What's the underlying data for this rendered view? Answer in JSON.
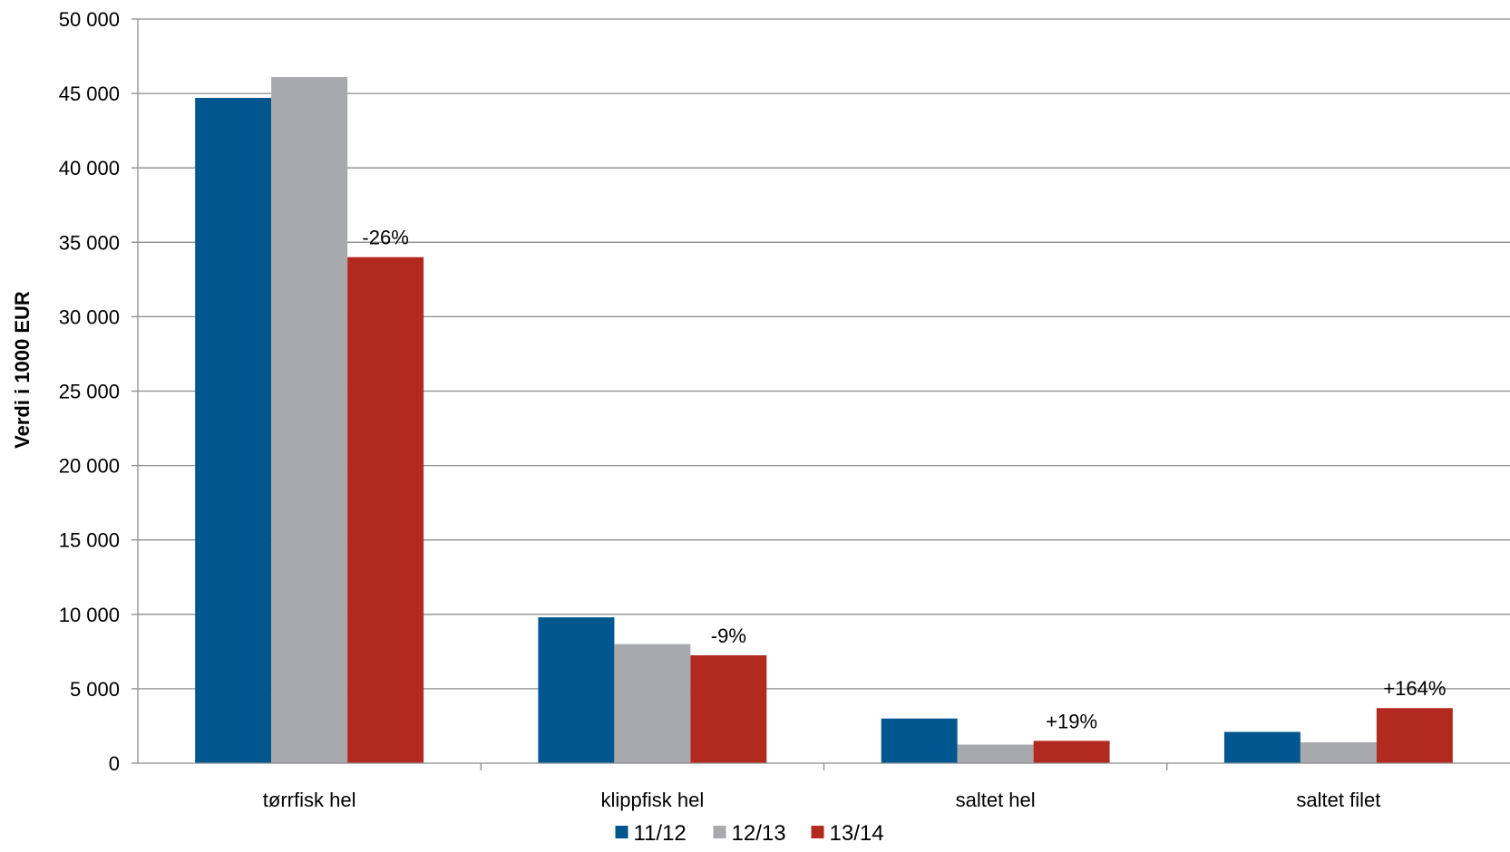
{
  "chart_data": {
    "type": "bar",
    "ylabel": "Verdi i 1000 EUR",
    "xlabel": "",
    "title": "",
    "ylim": [
      0,
      50000
    ],
    "yticks": [
      0,
      5000,
      10000,
      15000,
      20000,
      25000,
      30000,
      35000,
      40000,
      45000,
      50000
    ],
    "ytick_labels": [
      "0",
      "5 000",
      "10 000",
      "15 000",
      "20 000",
      "25 000",
      "30 000",
      "35 000",
      "40 000",
      "45 000",
      "50 000"
    ],
    "categories": [
      "tørrfisk hel",
      "klippfisk hel",
      "saltet hel",
      "saltet filet"
    ],
    "series": [
      {
        "name": "11/12",
        "color": "#00568F",
        "values": [
          44700,
          9800,
          3000,
          2100
        ]
      },
      {
        "name": "12/13",
        "color": "#A7A9AC",
        "values": [
          46100,
          8000,
          1250,
          1400
        ]
      },
      {
        "name": "13/14",
        "color": "#B22A1F",
        "values": [
          34000,
          7250,
          1500,
          3700
        ]
      }
    ],
    "data_labels": [
      {
        "category": "tørrfisk hel",
        "series": "13/14",
        "text": "-26%"
      },
      {
        "category": "klippfisk hel",
        "series": "13/14",
        "text": "-9%"
      },
      {
        "category": "saltet hel",
        "series": "13/14",
        "text": "+19%"
      },
      {
        "category": "saltet filet",
        "series": "13/14",
        "text": "+164%"
      }
    ],
    "grid": true,
    "legend_position": "bottom"
  }
}
